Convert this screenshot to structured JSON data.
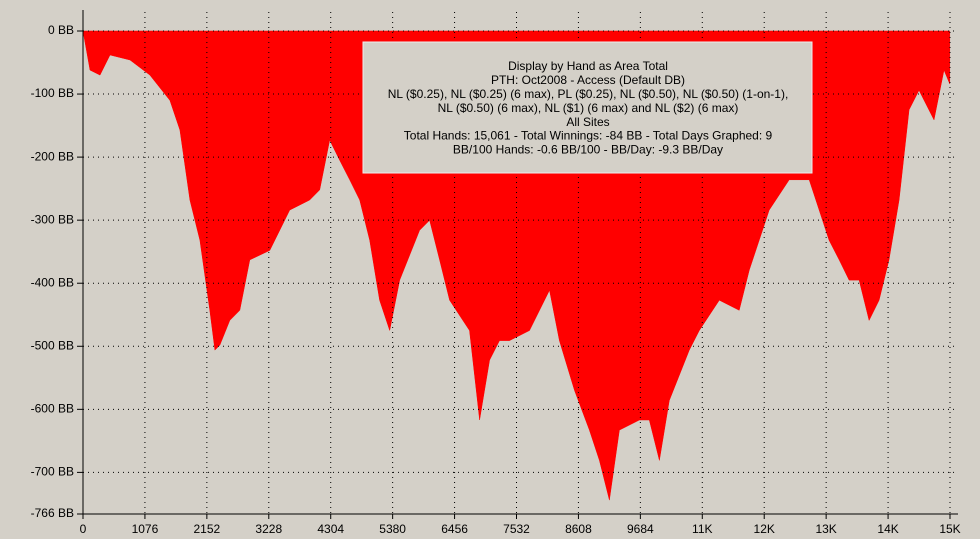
{
  "chart_data": {
    "type": "area",
    "color": "#ff0000",
    "annotation": [
      "Display by Hand as Area Total",
      "PTH: Oct2008 - Access (Default DB)",
      "NL ($0.25), NL ($0.25) (6 max), PL ($0.25), NL ($0.50), NL ($0.50) (1-on-1),",
      "NL ($0.50) (6 max), NL ($1) (6 max) and NL ($2) (6 max)",
      "All Sites",
      "Total Hands: 15,061 - Total Winnings: -84 BB - Total Days Graphed: 9",
      "BB/100 Hands: -0.6 BB/100 - BB/Day: -9.3 BB/Day"
    ],
    "x": [
      0,
      121,
      295,
      469,
      816,
      1163,
      1510,
      1683,
      1857,
      2031,
      2204,
      2291,
      2378,
      2551,
      2725,
      2898,
      3245,
      3592,
      3939,
      4113,
      4287,
      4460,
      4634,
      4807,
      4981,
      5154,
      5328,
      5502,
      5849,
      6022,
      6196,
      6369,
      6716,
      6890,
      7064,
      7237,
      7411,
      7758,
      8105,
      8278,
      8539,
      8799,
      8973,
      9146,
      9320,
      9667,
      9840,
      10014,
      10187,
      10534,
      10708,
      11055,
      11402,
      11576,
      11923,
      12270,
      12617,
      12964,
      13138,
      13311,
      13485,
      13658,
      13832,
      14005,
      14179,
      14353,
      14526,
      14786,
      14960,
      15061
    ],
    "values": [
      0,
      -62,
      -70,
      -38,
      -46,
      -70,
      -110,
      -157,
      -268,
      -332,
      -443,
      -506,
      -498,
      -459,
      -443,
      -363,
      -348,
      -284,
      -268,
      -252,
      -173,
      -205,
      -236,
      -268,
      -332,
      -427,
      -475,
      -395,
      -316,
      -300,
      -363,
      -427,
      -475,
      -617,
      -522,
      -491,
      -491,
      -475,
      -411,
      -491,
      -570,
      -633,
      -681,
      -744,
      -633,
      -617,
      -617,
      -681,
      -586,
      -506,
      -475,
      -427,
      -443,
      -379,
      -284,
      -236,
      -236,
      -332,
      -363,
      -395,
      -395,
      -459,
      -427,
      -363,
      -268,
      -125,
      -94,
      -141,
      -62,
      -84
    ],
    "xlim": [
      0,
      15064
    ],
    "ylim": [
      -766,
      0
    ],
    "xticks": [
      0,
      1076,
      2152,
      3228,
      4304,
      5380,
      6456,
      7532,
      8608,
      9684,
      {
        "value": 10760,
        "label": "11K"
      },
      {
        "value": 11836,
        "label": "12K"
      },
      {
        "value": 12912,
        "label": "13K"
      },
      {
        "value": 13988,
        "label": "14K"
      },
      {
        "value": 15064,
        "label": "15K"
      }
    ],
    "yticks": [
      {
        "value": 0,
        "label": "0 BB"
      },
      {
        "value": -100,
        "label": "-100 BB"
      },
      {
        "value": -200,
        "label": "-200 BB"
      },
      {
        "value": -300,
        "label": "-300 BB"
      },
      {
        "value": -400,
        "label": "-400 BB"
      },
      {
        "value": -500,
        "label": "-500 BB"
      },
      {
        "value": -600,
        "label": "-600 BB"
      },
      {
        "value": -700,
        "label": "-700 BB"
      },
      {
        "value": -766,
        "label": "-766 BB"
      }
    ],
    "grid": true
  }
}
